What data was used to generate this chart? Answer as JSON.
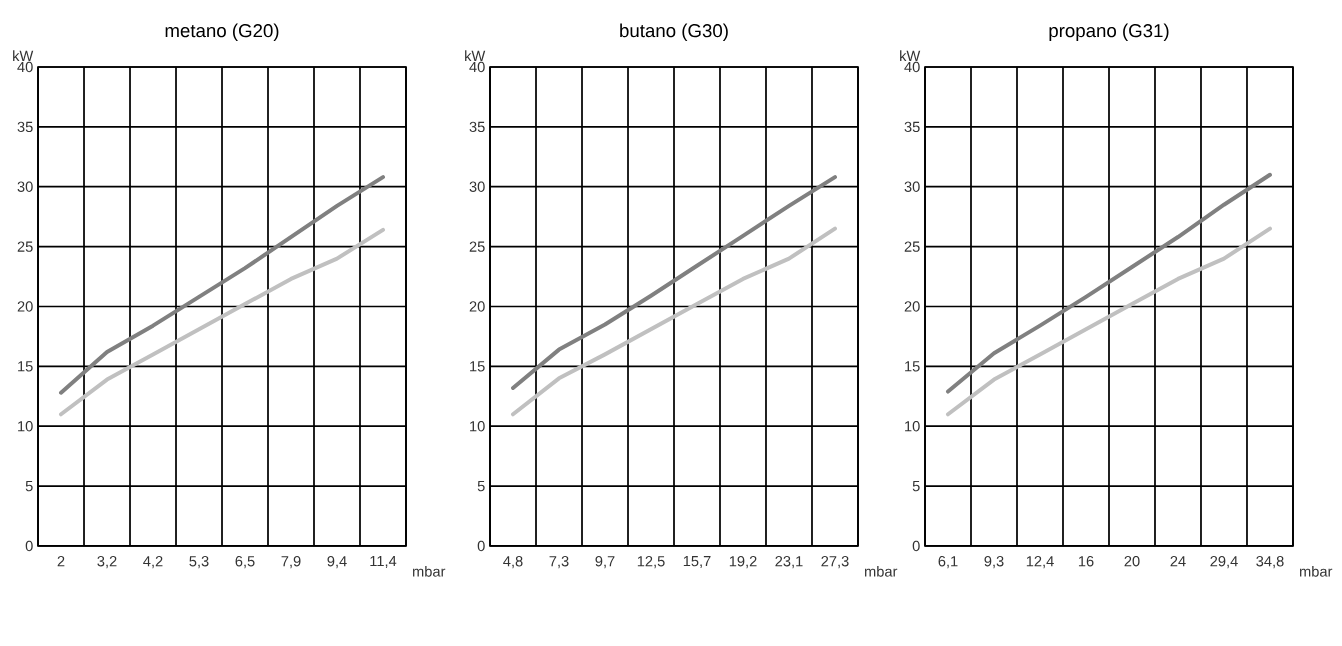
{
  "chart_data": [
    {
      "type": "line",
      "title": "metano (G20)",
      "xlabel": "mbar",
      "ylabel": "kW",
      "categories": [
        "2",
        "3,2",
        "4,2",
        "5,3",
        "6,5",
        "7,9",
        "9,4",
        "11,4"
      ],
      "ylim": [
        0,
        40
      ],
      "yticks": [
        0,
        5,
        10,
        15,
        20,
        25,
        30,
        35,
        40
      ],
      "grid": true,
      "line_style": "solid",
      "series": [
        {
          "color": "#c0c0c0",
          "values": [
            11.0,
            13.9,
            16.0,
            18.1,
            20.2,
            22.3,
            24.0,
            26.4
          ]
        },
        {
          "color": "#808080",
          "values": [
            12.8,
            16.2,
            18.4,
            20.8,
            23.2,
            25.8,
            28.4,
            30.8
          ]
        }
      ]
    },
    {
      "type": "line",
      "title": "butano (G30)",
      "xlabel": "mbar",
      "ylabel": "kW",
      "categories": [
        "4,8",
        "7,3",
        "9,7",
        "12,5",
        "15,7",
        "19,2",
        "23,1",
        "27,3"
      ],
      "ylim": [
        0,
        40
      ],
      "yticks": [
        0,
        5,
        10,
        15,
        20,
        25,
        30,
        35,
        40
      ],
      "grid": true,
      "line_style": "solid",
      "series": [
        {
          "color": "#c0c0c0",
          "values": [
            11.0,
            14.0,
            16.0,
            18.1,
            20.2,
            22.3,
            24.0,
            26.5
          ]
        },
        {
          "color": "#808080",
          "values": [
            13.2,
            16.4,
            18.5,
            20.9,
            23.4,
            25.9,
            28.4,
            30.8
          ]
        }
      ]
    },
    {
      "type": "line",
      "title": "propano (G31)",
      "xlabel": "mbar",
      "ylabel": "kW",
      "categories": [
        "6,1",
        "9,3",
        "12,4",
        "16",
        "20",
        "24",
        "29,4",
        "34,8"
      ],
      "ylim": [
        0,
        40
      ],
      "yticks": [
        0,
        5,
        10,
        15,
        20,
        25,
        30,
        35,
        40
      ],
      "grid": true,
      "line_style": "solid",
      "series": [
        {
          "color": "#c0c0c0",
          "values": [
            11.0,
            13.9,
            16.0,
            18.1,
            20.2,
            22.3,
            24.0,
            26.5
          ]
        },
        {
          "color": "#808080",
          "values": [
            12.9,
            16.1,
            18.4,
            20.8,
            23.3,
            25.8,
            28.5,
            31.0
          ]
        }
      ]
    }
  ]
}
